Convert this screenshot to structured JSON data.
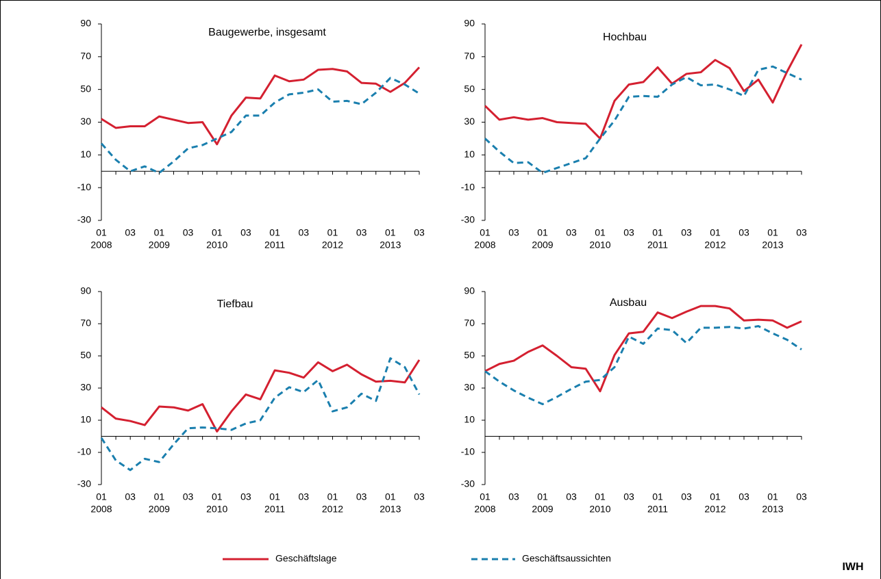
{
  "chart_data": [
    {
      "type": "line",
      "title": "Baugewerbe, insgesamt",
      "categories": [
        "01",
        null,
        "03",
        null,
        "01",
        null,
        "03",
        null,
        "01",
        null,
        "03",
        null,
        "01",
        null,
        "03",
        null,
        "01",
        null,
        "03",
        null,
        "01",
        null,
        "03"
      ],
      "category_years": [
        "2008",
        null,
        null,
        null,
        "2009",
        null,
        null,
        null,
        "2010",
        null,
        null,
        null,
        "2011",
        null,
        null,
        null,
        "2012",
        null,
        null,
        null,
        "2013",
        null,
        null
      ],
      "ylim": [
        -30,
        90
      ],
      "yticks": [
        -30,
        -10,
        10,
        30,
        50,
        70,
        90
      ],
      "series": [
        {
          "name": "Geschäftslage",
          "color": "#d42030",
          "dashed": false,
          "values": [
            32,
            26.5,
            27.5,
            27.5,
            33.5,
            31.5,
            29.5,
            30,
            16.5,
            34,
            45,
            44.5,
            58.5,
            55,
            56,
            62,
            62.5,
            61,
            54,
            53.5,
            48.5,
            54,
            63.5
          ]
        },
        {
          "name": "Geschäftsaussichten",
          "color": "#1a7fae",
          "dashed": true,
          "values": [
            17,
            7,
            0,
            3,
            -1,
            6,
            14,
            16,
            20,
            24,
            34,
            34,
            42,
            47,
            48,
            50,
            42.5,
            43,
            41,
            48,
            57,
            53,
            47.5
          ]
        }
      ]
    },
    {
      "type": "line",
      "title": "Hochbau",
      "categories": [
        "01",
        null,
        "03",
        null,
        "01",
        null,
        "03",
        null,
        "01",
        null,
        "03",
        null,
        "01",
        null,
        "03",
        null,
        "01",
        null,
        "03",
        null,
        "01",
        null,
        "03"
      ],
      "category_years": [
        "2008",
        null,
        null,
        null,
        "2009",
        null,
        null,
        null,
        "2010",
        null,
        null,
        null,
        "2011",
        null,
        null,
        null,
        "2012",
        null,
        null,
        null,
        "2013",
        null,
        null
      ],
      "ylim": [
        -30,
        90
      ],
      "yticks": [
        -30,
        -10,
        10,
        30,
        50,
        70,
        90
      ],
      "series": [
        {
          "name": "Geschäftslage",
          "color": "#d42030",
          "dashed": false,
          "values": [
            40,
            31.5,
            33,
            31.5,
            32.5,
            30,
            29.5,
            29,
            20,
            43,
            53,
            54.5,
            63.5,
            53.5,
            59.5,
            60.5,
            68,
            63,
            49,
            56,
            42,
            61,
            77.5
          ]
        },
        {
          "name": "Geschäftsaussichten",
          "color": "#1a7fae",
          "dashed": true,
          "values": [
            20,
            12,
            5,
            5.5,
            -1,
            2,
            5,
            8,
            20,
            31,
            45.5,
            46,
            45.5,
            53,
            57.5,
            52.5,
            53,
            50,
            46,
            62,
            64,
            60,
            56
          ]
        }
      ]
    },
    {
      "type": "line",
      "title": "Tiefbau",
      "categories": [
        "01",
        null,
        "03",
        null,
        "01",
        null,
        "03",
        null,
        "01",
        null,
        "03",
        null,
        "01",
        null,
        "03",
        null,
        "01",
        null,
        "03",
        null,
        "01",
        null,
        "03"
      ],
      "category_years": [
        "2008",
        null,
        null,
        null,
        "2009",
        null,
        null,
        null,
        "2010",
        null,
        null,
        null,
        "2011",
        null,
        null,
        null,
        "2012",
        null,
        null,
        null,
        "2013",
        null,
        null
      ],
      "ylim": [
        -30,
        90
      ],
      "yticks": [
        -30,
        -10,
        10,
        30,
        50,
        70,
        90
      ],
      "series": [
        {
          "name": "Geschäftslage",
          "color": "#d42030",
          "dashed": false,
          "values": [
            18,
            11,
            9.5,
            7,
            18.5,
            18,
            16,
            20,
            3,
            15.5,
            26,
            23,
            41,
            39.5,
            36.5,
            46,
            40.5,
            44.5,
            38.5,
            34,
            34.5,
            33.5,
            47.5
          ]
        },
        {
          "name": "Geschäftsaussichten",
          "color": "#1a7fae",
          "dashed": true,
          "values": [
            -1,
            -15,
            -21,
            -14,
            -16,
            -5,
            5,
            5.5,
            5,
            4,
            8,
            10,
            24,
            30.5,
            27.5,
            35,
            15.5,
            18,
            26.5,
            22,
            48.5,
            43,
            26
          ]
        }
      ]
    },
    {
      "type": "line",
      "title": "Ausbau",
      "categories": [
        "01",
        null,
        "03",
        null,
        "01",
        null,
        "03",
        null,
        "01",
        null,
        "03",
        null,
        "01",
        null,
        "03",
        null,
        "01",
        null,
        "03",
        null,
        "01",
        null,
        "03"
      ],
      "category_years": [
        "2008",
        null,
        null,
        null,
        "2009",
        null,
        null,
        null,
        "2010",
        null,
        null,
        null,
        "2011",
        null,
        null,
        null,
        "2012",
        null,
        null,
        null,
        "2013",
        null,
        null
      ],
      "ylim": [
        -30,
        90
      ],
      "yticks": [
        -30,
        -10,
        10,
        30,
        50,
        70,
        90
      ],
      "series": [
        {
          "name": "Geschäftslage",
          "color": "#d42030",
          "dashed": false,
          "values": [
            40.5,
            45,
            47,
            52.5,
            56.5,
            50,
            43,
            42,
            28,
            50.5,
            64,
            65,
            77,
            73.5,
            77.5,
            81,
            81,
            79.5,
            72,
            72.5,
            72,
            67.5,
            71.5
          ]
        },
        {
          "name": "Geschäftsaussichten",
          "color": "#1a7fae",
          "dashed": true,
          "values": [
            40.5,
            34,
            28.5,
            24,
            20,
            24.5,
            29.5,
            34,
            35,
            43,
            62,
            57.5,
            67,
            66,
            58,
            67.5,
            67.5,
            68,
            67,
            68.5,
            64,
            60,
            54
          ]
        }
      ]
    }
  ],
  "footer": "IWH"
}
